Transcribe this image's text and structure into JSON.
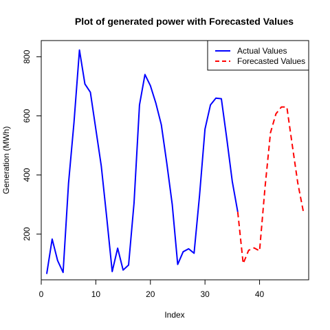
{
  "chart_data": {
    "type": "line",
    "title": "Plot of generated power with Forecasted Values",
    "xlabel": "Index",
    "ylabel": "Generation (MWh)",
    "xlim": [
      0,
      49
    ],
    "ylim": [
      45,
      855
    ],
    "xticks": [
      0,
      10,
      20,
      30,
      40
    ],
    "yticks": [
      200,
      400,
      600,
      800
    ],
    "legend_position": "top-right",
    "series": [
      {
        "name": "Actual Values",
        "color": "#0000ff",
        "line_style": "solid",
        "x": [
          1,
          2,
          3,
          4,
          5,
          6,
          7,
          8,
          9,
          10,
          11,
          12,
          13,
          14,
          15,
          16,
          17,
          18,
          19,
          20,
          21,
          22,
          23,
          24,
          25,
          26,
          27,
          28,
          29,
          30,
          31,
          32,
          33,
          34,
          35,
          36
        ],
        "values": [
          65,
          183,
          110,
          70,
          372,
          578,
          823,
          708,
          680,
          555,
          430,
          255,
          73,
          152,
          78,
          95,
          305,
          637,
          740,
          702,
          643,
          570,
          440,
          300,
          97,
          140,
          150,
          135,
          330,
          555,
          637,
          660,
          658,
          522,
          378,
          275
        ]
      },
      {
        "name": "Forecasted Values",
        "color": "#ff0000",
        "line_style": "dashed",
        "x": [
          36,
          37,
          38,
          39,
          40,
          41,
          42,
          43,
          44,
          45,
          46,
          47,
          48
        ],
        "values": [
          275,
          100,
          145,
          153,
          143,
          358,
          543,
          607,
          630,
          630,
          500,
          373,
          278
        ]
      }
    ]
  }
}
